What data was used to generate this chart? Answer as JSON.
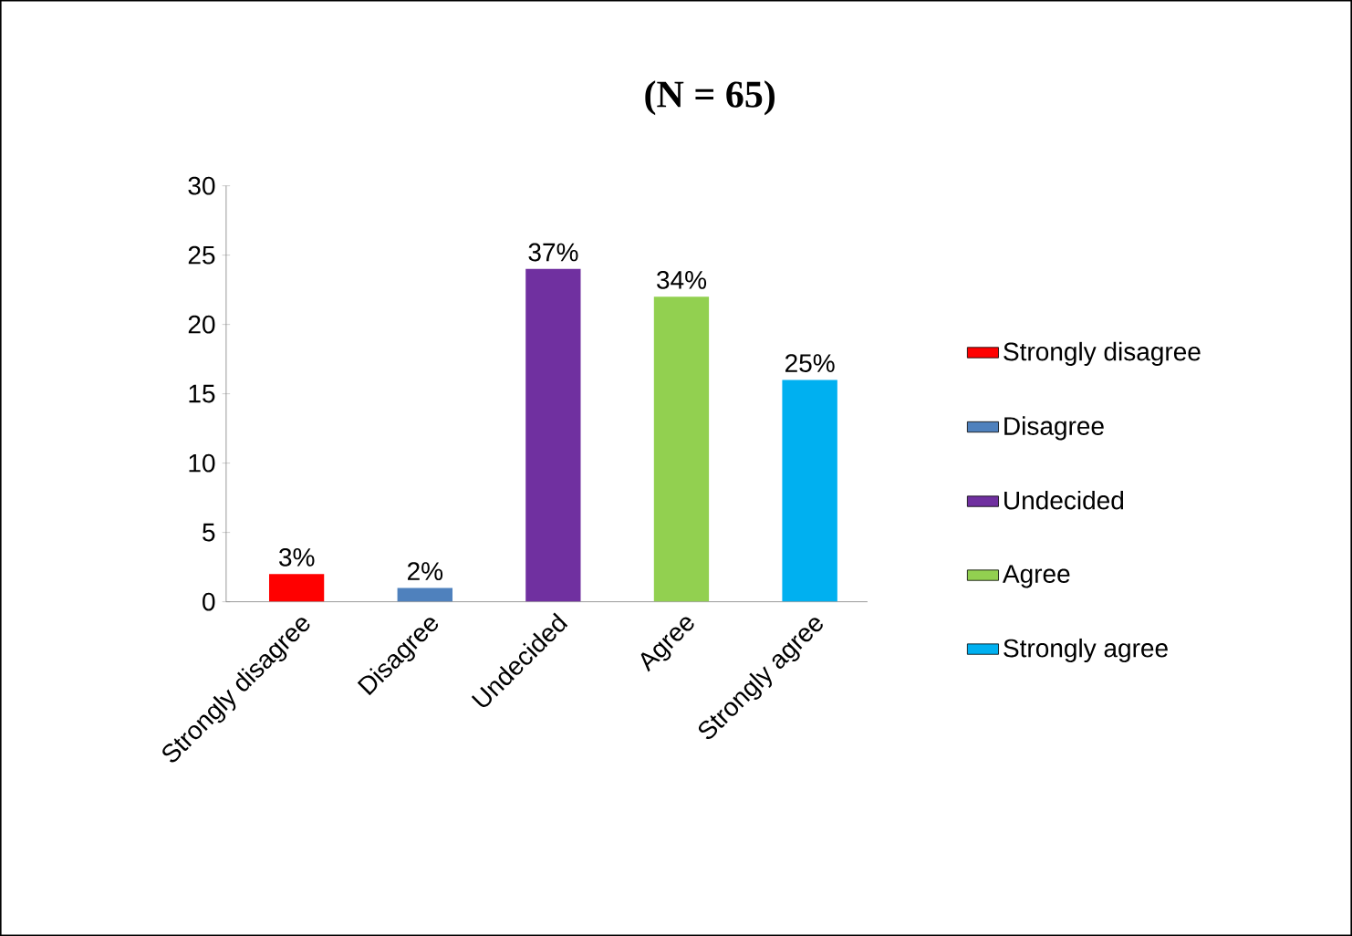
{
  "chart_data": {
    "type": "bar",
    "title": "(N = 65)",
    "categories": [
      "Strongly disagree",
      "Disagree",
      "Undecided",
      "Agree",
      "Strongly agree"
    ],
    "series": [
      {
        "name": "Strongly disagree",
        "color": "#ff0000",
        "values": [
          2,
          null,
          null,
          null,
          null
        ]
      },
      {
        "name": "Disagree",
        "color": "#4f81bd",
        "values": [
          null,
          1,
          null,
          null,
          null
        ]
      },
      {
        "name": "Undecided",
        "color": "#7030a0",
        "values": [
          null,
          null,
          24,
          null,
          null
        ]
      },
      {
        "name": "Agree",
        "color": "#92d050",
        "values": [
          null,
          null,
          null,
          22,
          null
        ]
      },
      {
        "name": "Strongly agree",
        "color": "#00b0f0",
        "values": [
          null,
          null,
          null,
          null,
          16
        ]
      }
    ],
    "annotations": [
      {
        "text": "3%",
        "x": "Strongly disagree",
        "y": 2
      },
      {
        "text": "2%",
        "x": "Disagree",
        "y": 1
      },
      {
        "text": "37%",
        "x": "Undecided",
        "y": 24
      },
      {
        "text": "34%",
        "x": "Agree",
        "y": 22
      },
      {
        "text": "25%",
        "x": "Strongly agree",
        "y": 16
      }
    ],
    "ylim": [
      0,
      30
    ],
    "yticks": [
      0,
      5,
      10,
      15,
      20,
      25,
      30
    ],
    "legend": "right"
  }
}
